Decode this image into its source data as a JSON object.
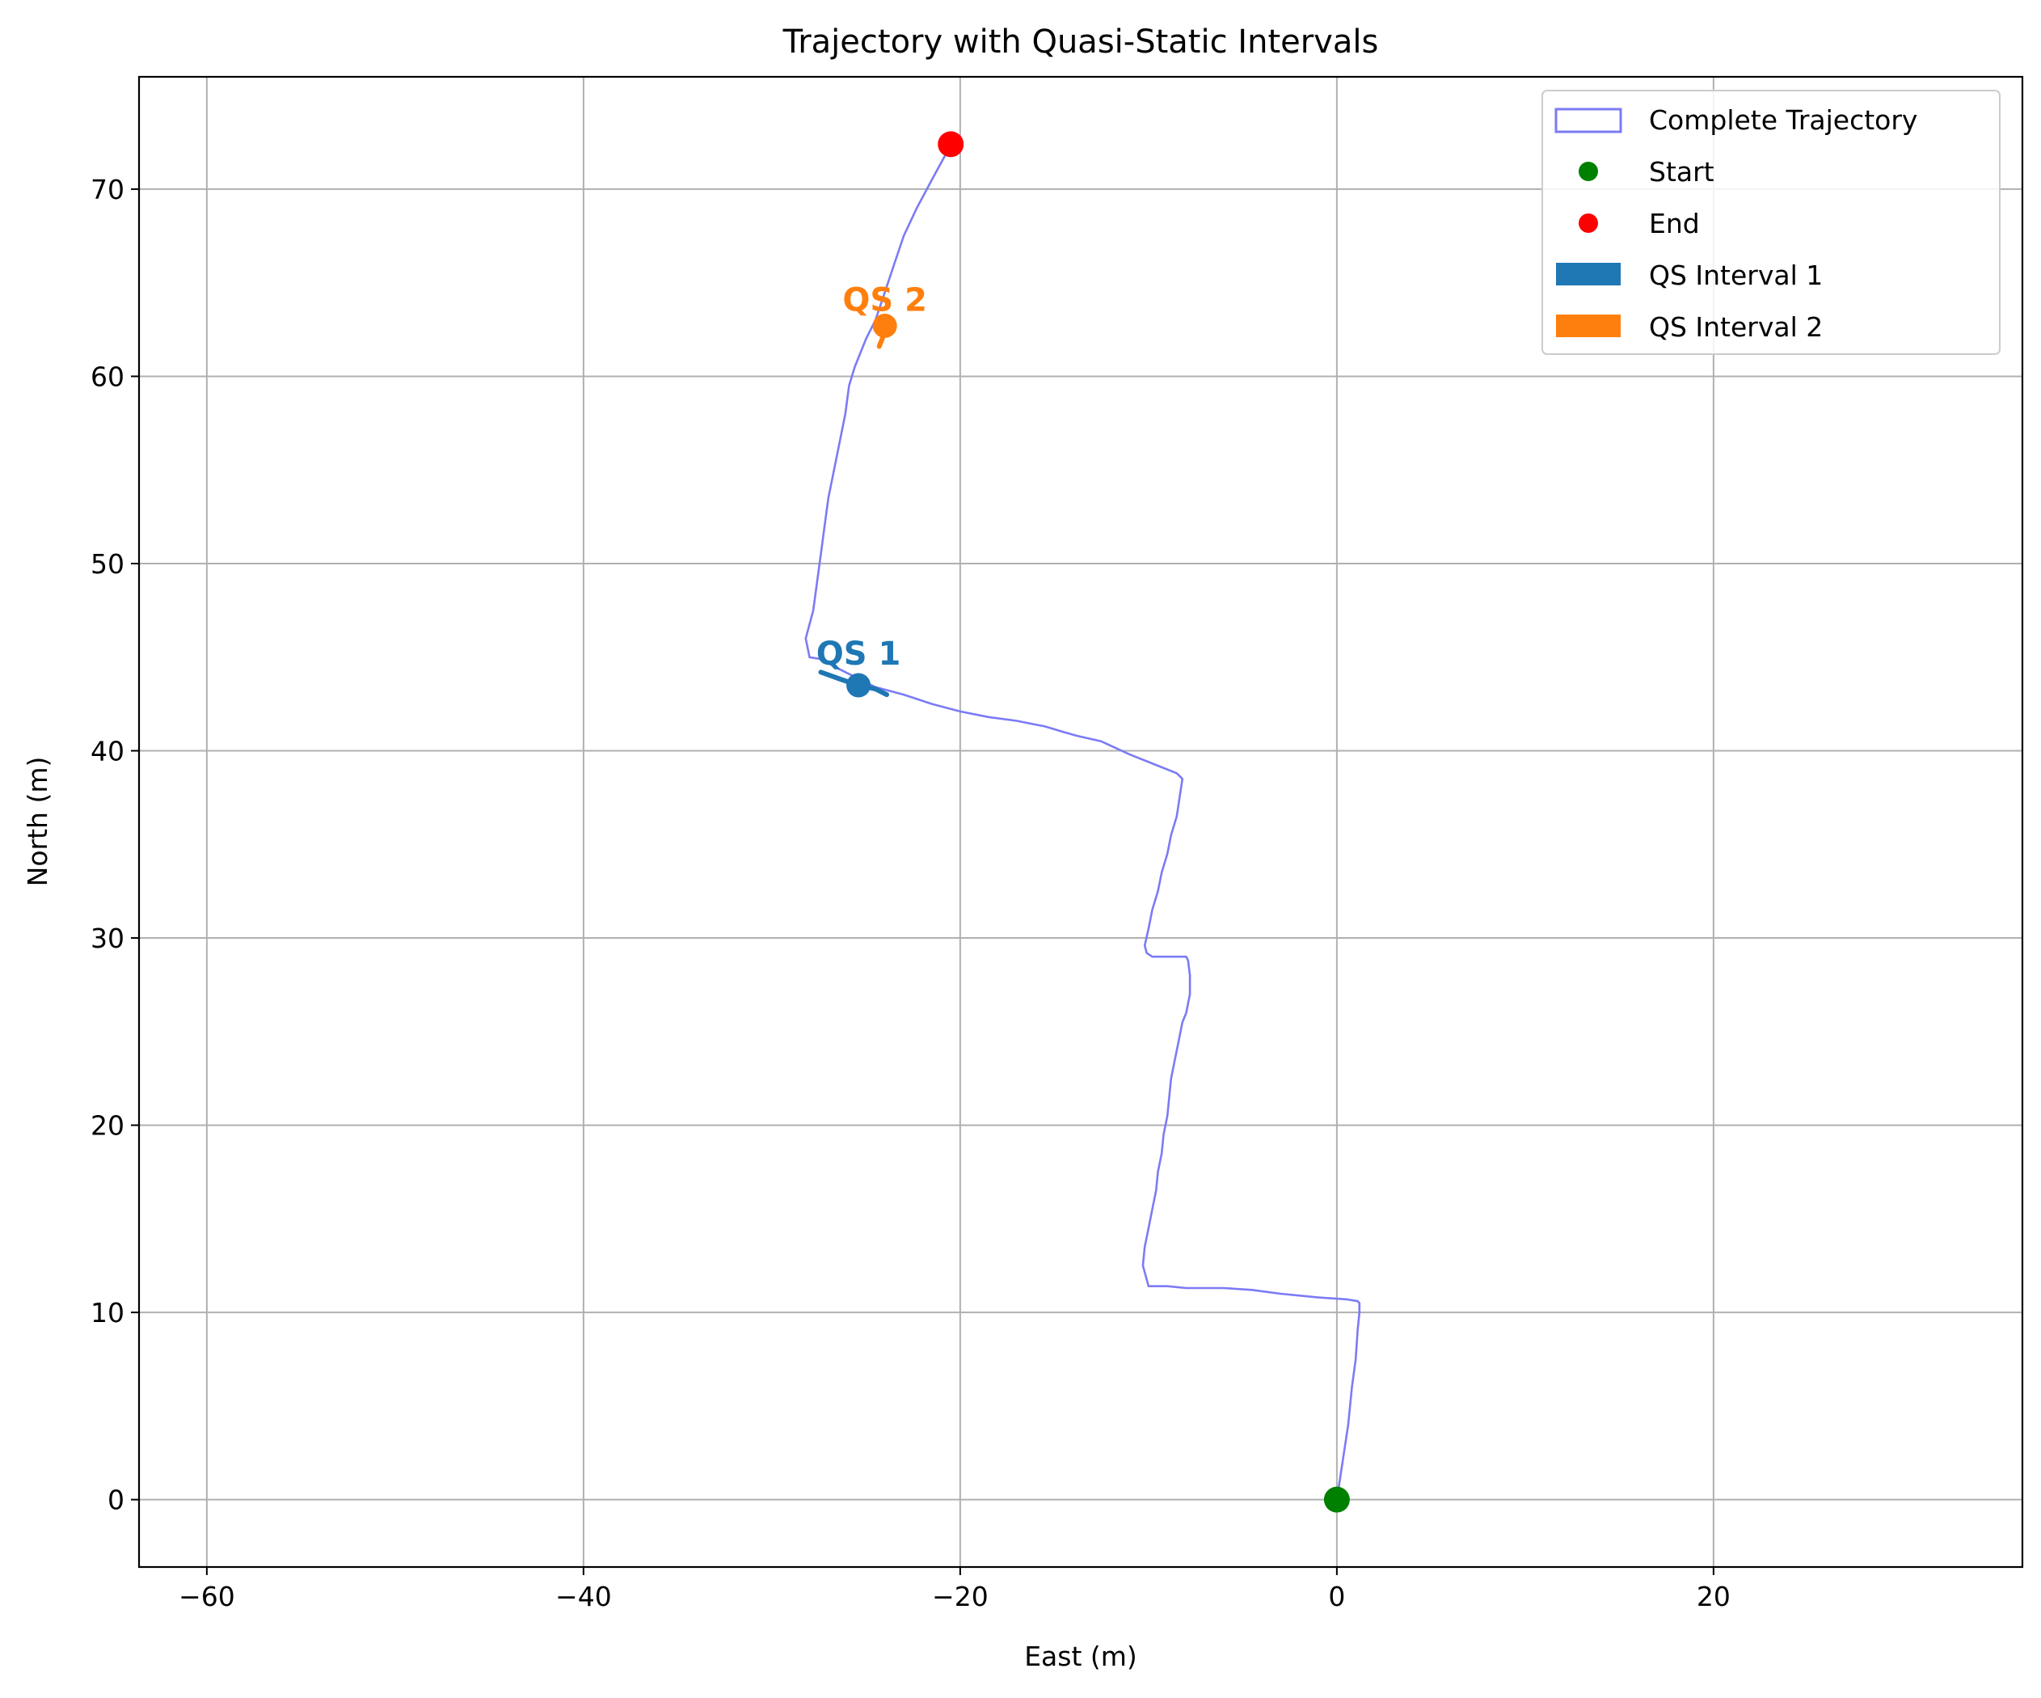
{
  "chart_data": {
    "type": "line",
    "title": "Trajectory with Quasi-Static Intervals",
    "xlabel": "East (m)",
    "ylabel": "North (m)",
    "xlim": [
      -63.6,
      36.4
    ],
    "ylim": [
      -3.6,
      76.0
    ],
    "xticks": [
      -60,
      -40,
      -20,
      0,
      20
    ],
    "xtick_labels": [
      "−60",
      "−40",
      "−20",
      "0",
      "20"
    ],
    "yticks": [
      0,
      10,
      20,
      30,
      40,
      50,
      60,
      70
    ],
    "ytick_labels": [
      "0",
      "10",
      "20",
      "30",
      "40",
      "50",
      "60",
      "70"
    ],
    "grid": true,
    "legend_position": "top-right",
    "colors": {
      "trajectory": "#7b7bf6",
      "start": "#008000",
      "end": "#ff0000",
      "qs1": "#1f77b4",
      "qs2": "#ff7f0e",
      "grid": "#b0b0b0"
    },
    "series": [
      {
        "name": "Complete Trajectory",
        "x": [
          0.0,
          0.3,
          0.6,
          0.8,
          1.0,
          1.1,
          1.2,
          1.2,
          1.1,
          0.5,
          -1.0,
          -3.0,
          -4.5,
          -6.0,
          -8.0,
          -9.0,
          -10.0,
          -10.2,
          -10.1,
          -10.0,
          -9.8,
          -9.6,
          -9.5,
          -9.3,
          -9.2,
          -9.0,
          -8.9,
          -8.8,
          -8.6,
          -8.4,
          -7.9,
          -7.8,
          -7.8,
          -8.0,
          -8.2,
          -8.5,
          -8.8,
          -9.0,
          -9.0,
          -9.1,
          -9.2,
          -9.4,
          -9.5,
          -9.6,
          -9.7,
          -9.9,
          -10.2,
          -10.3,
          -10.1,
          -8.0,
          -8.0,
          -8.2,
          -8.5,
          -8.8,
          -9.2,
          -9.6,
          -9.8,
          -10.0,
          -10.2,
          -10.4,
          -8.5,
          -9.5,
          -11.0,
          -12.5,
          -13.8,
          -14.5,
          -15.5,
          -17.0,
          -18.5,
          -20.0,
          -21.5,
          -23.0,
          -24.5,
          -25.5,
          -26.5,
          -27.4,
          -28.0,
          -28.2,
          -27.8,
          -27.6,
          -27.4,
          -27.2,
          -27.0,
          -26.7,
          -26.4,
          -26.1,
          -25.9,
          -25.6,
          -25.4,
          -25.0,
          -24.5,
          -24.0,
          -23.5,
          -23.0,
          -22.3,
          -21.5,
          -20.8,
          -20.5
        ],
        "y": [
          0.0,
          2.0,
          4.0,
          6.0,
          7.5,
          9.0,
          10.0,
          10.5,
          10.6,
          10.7,
          10.8,
          11.0,
          11.2,
          11.3,
          11.3,
          11.4,
          11.4,
          11.5,
          12.5,
          13.5,
          14.5,
          15.5,
          16.5,
          17.5,
          18.5,
          19.5,
          20.5,
          21.5,
          22.5,
          23.5,
          25.0,
          26.0,
          27.0,
          28.0,
          28.8,
          28.9,
          29.0,
          29.0,
          29.0,
          29.2,
          29.3,
          29.4,
          29.5,
          29.7,
          29.9,
          30.2,
          30.5,
          31.0,
          32.0,
          29.0,
          29.0,
          28.0,
          27.0,
          25.0,
          23.0,
          21.0,
          20.0,
          18.0,
          16.0,
          14.0,
          38.5,
          38.8,
          39.2,
          39.8,
          40.5,
          40.8,
          41.0,
          41.3,
          41.6,
          41.8,
          42.1,
          42.5,
          43.0,
          43.4,
          43.9,
          44.4,
          45.0,
          46.0,
          47.5,
          49.0,
          50.5,
          52.0,
          53.5,
          55.0,
          56.5,
          58.0,
          59.5,
          60.5,
          61.0,
          62.0,
          63.0,
          64.5,
          66.0,
          67.5,
          69.0,
          70.5,
          71.8,
          72.4
        ]
      }
    ],
    "path": {
      "x": [
        0.0,
        0.3,
        0.6,
        0.8,
        1.0,
        1.1,
        1.2,
        1.2,
        1.1,
        0.5,
        -1.0,
        -3.0,
        -4.5,
        -6.0,
        -8.0,
        -9.0,
        -10.0,
        -10.3,
        -10.2,
        -10.0,
        -9.8,
        -9.6,
        -9.5,
        -9.3,
        -9.2,
        -9.0,
        -8.9,
        -8.8,
        -8.6,
        -8.4,
        -8.2,
        -8.0,
        -7.8,
        -7.8,
        -7.9,
        -8.0,
        -8.0,
        -9.8,
        -10.1,
        -10.2,
        -10.0,
        -9.8,
        -9.5,
        -9.3,
        -9.0,
        -8.8,
        -8.5,
        -8.2,
        -8.5,
        -9.5,
        -11.0,
        -12.5,
        -13.8,
        -14.5,
        -15.5,
        -17.0,
        -18.5,
        -20.0,
        -21.5,
        -23.0,
        -24.5,
        -25.5,
        -26.5,
        -27.4,
        -28.0,
        -28.2,
        -27.8,
        -27.6,
        -27.4,
        -27.2,
        -27.0,
        -26.7,
        -26.4,
        -26.1,
        -25.9,
        -25.6,
        -25.4,
        -25.0,
        -24.5,
        -24.0,
        -23.5,
        -23.0,
        -22.3,
        -21.5,
        -20.8,
        -20.5
      ],
      "y": [
        0.0,
        2.0,
        4.0,
        6.0,
        7.5,
        9.0,
        10.0,
        10.5,
        10.6,
        10.7,
        10.8,
        11.0,
        11.2,
        11.3,
        11.3,
        11.4,
        11.4,
        12.5,
        13.5,
        14.5,
        15.5,
        16.5,
        17.5,
        18.5,
        19.5,
        20.5,
        21.5,
        22.5,
        23.5,
        24.5,
        25.5,
        26.0,
        27.0,
        28.0,
        28.8,
        29.0,
        29.0,
        29.0,
        29.2,
        29.6,
        30.5,
        31.5,
        32.5,
        33.5,
        34.5,
        35.5,
        36.5,
        38.5,
        38.8,
        39.2,
        39.8,
        40.5,
        40.8,
        41.0,
        41.3,
        41.6,
        41.8,
        42.1,
        42.5,
        43.0,
        43.4,
        43.9,
        44.4,
        44.9,
        45.0,
        46.0,
        47.5,
        49.0,
        50.5,
        52.0,
        53.5,
        55.0,
        56.5,
        58.0,
        59.5,
        60.5,
        61.0,
        62.0,
        63.0,
        64.5,
        66.0,
        67.5,
        69.0,
        70.5,
        71.8,
        72.4
      ]
    },
    "start": {
      "name": "Start",
      "x": 0.0,
      "y": 0.0
    },
    "end": {
      "name": "End",
      "x": -20.5,
      "y": 72.4
    },
    "qs_intervals": [
      {
        "name": "QS Interval 1",
        "label": "QS 1",
        "x": [
          -27.4,
          -26.3,
          -25.4,
          -24.5,
          -23.9
        ],
        "y": [
          44.2,
          43.8,
          43.5,
          43.3,
          43.0
        ],
        "marker": {
          "x": -25.4,
          "y": 43.5
        },
        "label_pos": {
          "x": -25.4,
          "y": 44.6
        }
      },
      {
        "name": "QS Interval 2",
        "label": "QS 2",
        "x": [
          -24.0,
          -24.1,
          -24.3
        ],
        "y": [
          62.7,
          62.1,
          61.6
        ],
        "marker": {
          "x": -24.0,
          "y": 62.7
        },
        "label_pos": {
          "x": -24.0,
          "y": 63.5
        }
      }
    ],
    "legend": [
      "Complete Trajectory",
      "Start",
      "End",
      "QS Interval 1",
      "QS Interval 2"
    ]
  }
}
